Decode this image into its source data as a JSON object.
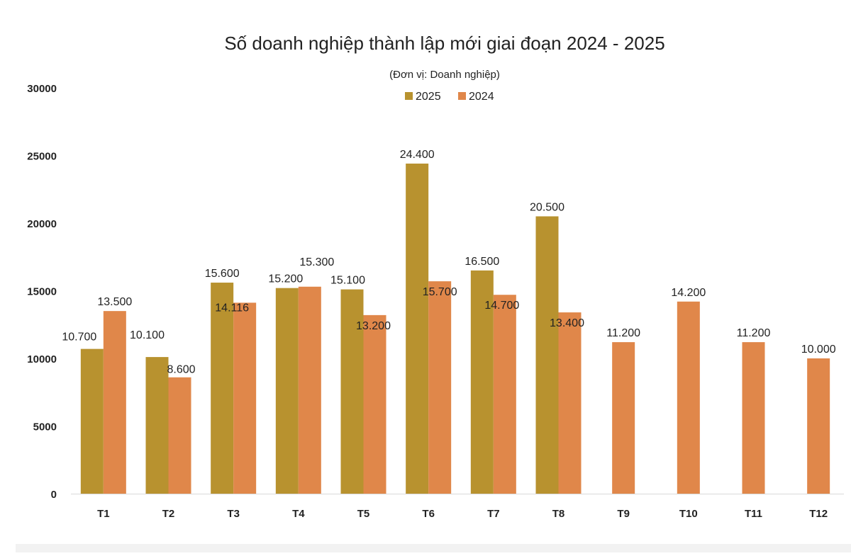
{
  "chart_data": {
    "type": "bar",
    "title": "Số doanh nghiệp thành lập mới giai đoạn 2024 - 2025",
    "subtitle": "(Đơn vị: Doanh nghiệp)",
    "categories": [
      "T1",
      "T2",
      "T3",
      "T4",
      "T5",
      "T6",
      "T7",
      "T8",
      "T9",
      "T10",
      "T11",
      "T12"
    ],
    "series": [
      {
        "name": "2025",
        "color": "#b8922f",
        "values": [
          10700,
          10100,
          15600,
          15200,
          15100,
          24400,
          16500,
          20500,
          null,
          null,
          null,
          null
        ],
        "labels": [
          "10.700",
          "10.100",
          "15.600",
          "15.200",
          "15.100",
          "24.400",
          "16.500",
          "20.500",
          "",
          "",
          "",
          ""
        ]
      },
      {
        "name": "2024",
        "color": "#e0874a",
        "values": [
          13500,
          8600,
          14116,
          15300,
          13200,
          15700,
          14700,
          13400,
          11200,
          14200,
          11200,
          10000
        ],
        "labels": [
          "13.500",
          "8.600",
          "14.116",
          "15.300",
          "13.200",
          "15.700",
          "14.700",
          "13.400",
          "11.200",
          "14.200",
          "11.200",
          "10.000"
        ]
      }
    ],
    "y_ticks": [
      "0",
      "5000",
      "10000",
      "15000",
      "20000",
      "25000",
      "30000"
    ],
    "ylim": [
      0,
      30000
    ],
    "grid": false,
    "legend_position": "top-center"
  }
}
